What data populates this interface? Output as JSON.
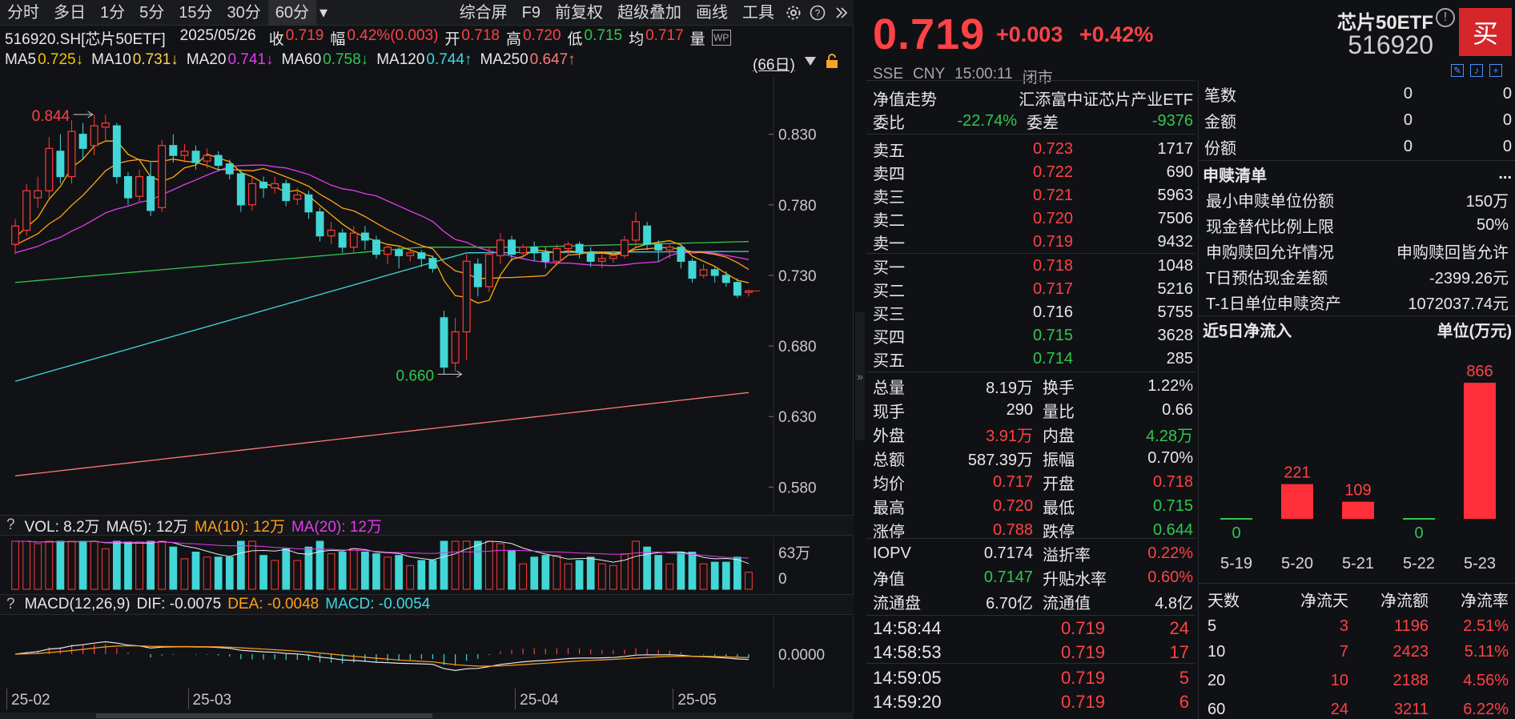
{
  "toolbar": {
    "tabs": [
      "分时",
      "多日",
      "1分",
      "5分",
      "15分",
      "30分",
      "60分"
    ],
    "more": "▾",
    "right": [
      "综合屏",
      "F9",
      "前复权",
      "超级叠加",
      "画线",
      "工具"
    ]
  },
  "info": {
    "code": "516920.SH[芯片50ETF]",
    "date": "2025/05/26",
    "close_label": "收",
    "close": "0.719",
    "amp_label": "幅",
    "amp": "0.42%(0.003)",
    "open_label": "开",
    "open": "0.718",
    "high_label": "高",
    "high": "0.720",
    "low_label": "低",
    "low": "0.715",
    "avg_label": "均",
    "avg": "0.717",
    "vol_label": "量"
  },
  "ma": {
    "ma5_label": "MA5",
    "ma5": "0.725↓",
    "ma10_label": "MA10",
    "ma10": "0.731↓",
    "ma20_label": "MA20",
    "ma20": "0.741↓",
    "ma60_label": "MA60",
    "ma60": "0.758↓",
    "ma120_label": "MA120",
    "ma120": "0.744↑",
    "ma250_label": "MA250",
    "ma250": "0.647↑",
    "period": "(66日)"
  },
  "chart_data": {
    "type": "candlestick",
    "ylim": [
      0.57,
      0.865
    ],
    "yticks": [
      "0.830",
      "0.780",
      "0.730",
      "0.680",
      "0.630",
      "0.580"
    ],
    "high_marker": "0.844",
    "low_marker": "0.660",
    "dates": [
      "25-02",
      "25-03",
      "25-04",
      "25-05"
    ],
    "candles": [
      [
        0.752,
        0.765,
        0.745,
        0.77
      ],
      [
        0.762,
        0.79,
        0.758,
        0.795
      ],
      [
        0.785,
        0.79,
        0.778,
        0.8
      ],
      [
        0.79,
        0.82,
        0.785,
        0.828
      ],
      [
        0.818,
        0.8,
        0.795,
        0.83
      ],
      [
        0.8,
        0.832,
        0.795,
        0.84
      ],
      [
        0.83,
        0.82,
        0.812,
        0.838
      ],
      [
        0.822,
        0.836,
        0.815,
        0.844
      ],
      [
        0.835,
        0.838,
        0.825,
        0.844
      ],
      [
        0.836,
        0.8,
        0.795,
        0.838
      ],
      [
        0.8,
        0.785,
        0.78,
        0.803
      ],
      [
        0.786,
        0.8,
        0.782,
        0.805
      ],
      [
        0.8,
        0.776,
        0.772,
        0.81
      ],
      [
        0.778,
        0.822,
        0.775,
        0.826
      ],
      [
        0.822,
        0.815,
        0.81,
        0.83
      ],
      [
        0.815,
        0.818,
        0.81,
        0.823
      ],
      [
        0.818,
        0.81,
        0.805,
        0.822
      ],
      [
        0.811,
        0.815,
        0.806,
        0.82
      ],
      [
        0.815,
        0.808,
        0.804,
        0.818
      ],
      [
        0.809,
        0.802,
        0.798,
        0.812
      ],
      [
        0.802,
        0.78,
        0.775,
        0.805
      ],
      [
        0.78,
        0.795,
        0.776,
        0.8
      ],
      [
        0.796,
        0.792,
        0.785,
        0.8
      ],
      [
        0.792,
        0.795,
        0.788,
        0.8
      ],
      [
        0.795,
        0.783,
        0.779,
        0.798
      ],
      [
        0.784,
        0.787,
        0.78,
        0.792
      ],
      [
        0.787,
        0.775,
        0.77,
        0.79
      ],
      [
        0.775,
        0.758,
        0.754,
        0.778
      ],
      [
        0.758,
        0.762,
        0.752,
        0.768
      ],
      [
        0.76,
        0.75,
        0.746,
        0.763
      ],
      [
        0.75,
        0.76,
        0.746,
        0.765
      ],
      [
        0.76,
        0.755,
        0.748,
        0.765
      ],
      [
        0.755,
        0.745,
        0.742,
        0.758
      ],
      [
        0.745,
        0.75,
        0.738,
        0.752
      ],
      [
        0.748,
        0.744,
        0.735,
        0.75
      ],
      [
        0.744,
        0.746,
        0.74,
        0.749
      ],
      [
        0.746,
        0.742,
        0.736,
        0.748
      ],
      [
        0.742,
        0.735,
        0.732,
        0.744
      ],
      [
        0.7,
        0.665,
        0.66,
        0.705
      ],
      [
        0.668,
        0.69,
        0.662,
        0.7
      ],
      [
        0.69,
        0.74,
        0.67,
        0.745
      ],
      [
        0.738,
        0.722,
        0.715,
        0.742
      ],
      [
        0.722,
        0.745,
        0.718,
        0.75
      ],
      [
        0.744,
        0.755,
        0.738,
        0.76
      ],
      [
        0.755,
        0.745,
        0.74,
        0.758
      ],
      [
        0.746,
        0.75,
        0.742,
        0.752
      ],
      [
        0.75,
        0.746,
        0.74,
        0.754
      ],
      [
        0.746,
        0.74,
        0.735,
        0.75
      ],
      [
        0.74,
        0.749,
        0.737,
        0.752
      ],
      [
        0.749,
        0.752,
        0.744,
        0.754
      ],
      [
        0.752,
        0.746,
        0.742,
        0.754
      ],
      [
        0.746,
        0.74,
        0.736,
        0.75
      ],
      [
        0.74,
        0.742,
        0.735,
        0.745
      ],
      [
        0.742,
        0.744,
        0.739,
        0.748
      ],
      [
        0.744,
        0.755,
        0.742,
        0.758
      ],
      [
        0.755,
        0.768,
        0.75,
        0.775
      ],
      [
        0.765,
        0.752,
        0.748,
        0.768
      ],
      [
        0.752,
        0.748,
        0.74,
        0.755
      ],
      [
        0.748,
        0.75,
        0.742,
        0.752
      ],
      [
        0.75,
        0.74,
        0.735,
        0.752
      ],
      [
        0.74,
        0.728,
        0.725,
        0.742
      ],
      [
        0.73,
        0.734,
        0.728,
        0.738
      ],
      [
        0.734,
        0.73,
        0.725,
        0.736
      ],
      [
        0.73,
        0.725,
        0.722,
        0.733
      ],
      [
        0.725,
        0.716,
        0.714,
        0.728
      ],
      [
        0.718,
        0.719,
        0.715,
        0.72
      ]
    ],
    "ma_colors": {
      "ma5": "#ffb000",
      "ma10": "#ff9f1c",
      "ma20": "#e23cf0",
      "ma60": "#30c751",
      "ma120": "#3fd8e0",
      "ma250": "#ff7a7a"
    }
  },
  "vol": {
    "q": "?",
    "label": "VOL: 8.2万",
    "ma5": "MA(5): 12万",
    "ma10": "MA(10): 12万",
    "ma20": "MA(20): 12万",
    "axis_top": "63万",
    "axis_bottom": "0"
  },
  "macd": {
    "q": "?",
    "label": "MACD(12,26,9)",
    "dif": "DIF: -0.0075",
    "dea": "DEA: -0.0048",
    "macd": "MACD: -0.0054",
    "axis": "0.0000"
  },
  "quote": {
    "price": "0.719",
    "chg": "+0.003",
    "pct": "+0.42%",
    "exchange": "SSE",
    "currency": "CNY",
    "time": "15:00:11",
    "status": "闭市",
    "name": "芯片50ETF",
    "code": "516920",
    "buy": "买",
    "alert": "!"
  },
  "order": {
    "nav_trend": "净值走势",
    "fund_name": "汇添富中证芯片产业ETF",
    "wb_label": "委比",
    "wb": "-22.74%",
    "wc_label": "委差",
    "wc": "-9376",
    "asks": [
      {
        "label": "卖五",
        "price": "0.723",
        "vol": "1717"
      },
      {
        "label": "卖四",
        "price": "0.722",
        "vol": "690"
      },
      {
        "label": "卖三",
        "price": "0.721",
        "vol": "5963"
      },
      {
        "label": "卖二",
        "price": "0.720",
        "vol": "7506"
      },
      {
        "label": "卖一",
        "price": "0.719",
        "vol": "9432"
      }
    ],
    "bids": [
      {
        "label": "买一",
        "price": "0.718",
        "vol": "1048",
        "color": "red"
      },
      {
        "label": "买二",
        "price": "0.717",
        "vol": "5216",
        "color": "red"
      },
      {
        "label": "买三",
        "price": "0.716",
        "vol": "5755",
        "color": "white"
      },
      {
        "label": "买四",
        "price": "0.715",
        "vol": "3628",
        "color": "green"
      },
      {
        "label": "买五",
        "price": "0.714",
        "vol": "285",
        "color": "green"
      }
    ]
  },
  "stats": [
    {
      "l1": "总量",
      "v1": "8.19万",
      "c1": "white",
      "l2": "换手",
      "v2": "1.22%",
      "c2": "white"
    },
    {
      "l1": "现手",
      "v1": "290",
      "c1": "white",
      "l2": "量比",
      "v2": "0.66",
      "c2": "white"
    },
    {
      "l1": "外盘",
      "v1": "3.91万",
      "c1": "red",
      "l2": "内盘",
      "v2": "4.28万",
      "c2": "green"
    },
    {
      "l1": "总额",
      "v1": "587.39万",
      "c1": "white",
      "l2": "振幅",
      "v2": "0.70%",
      "c2": "white"
    },
    {
      "l1": "均价",
      "v1": "0.717",
      "c1": "red",
      "l2": "开盘",
      "v2": "0.718",
      "c2": "red"
    },
    {
      "l1": "最高",
      "v1": "0.720",
      "c1": "red",
      "l2": "最低",
      "v2": "0.715",
      "c2": "green"
    },
    {
      "l1": "涨停",
      "v1": "0.788",
      "c1": "red",
      "l2": "跌停",
      "v2": "0.644",
      "c2": "green"
    }
  ],
  "stats2": [
    {
      "l1": "IOPV",
      "v1": "0.7174",
      "c1": "white",
      "l2": "溢折率",
      "v2": "0.22%",
      "c2": "red"
    },
    {
      "l1": "净值",
      "v1": "0.7147",
      "c1": "green",
      "l2": "升贴水率",
      "v2": "0.60%",
      "c2": "red"
    },
    {
      "l1": "流通盘",
      "v1": "6.70亿",
      "c1": "white",
      "l2": "流通值",
      "v2": "4.8亿",
      "c2": "white"
    }
  ],
  "ticks": [
    {
      "t": "14:58:44",
      "p": "0.719",
      "v": "24"
    },
    {
      "t": "14:58:53",
      "p": "0.719",
      "v": "17"
    },
    {
      "t": "14:59:05",
      "p": "0.719",
      "v": "5"
    },
    {
      "t": "14:59:20",
      "p": "0.719",
      "v": "6"
    }
  ],
  "side": {
    "top_rows": [
      {
        "a": "笔数",
        "b": "0",
        "c": "0"
      },
      {
        "a": "金额",
        "b": "0",
        "c": "0"
      },
      {
        "a": "份额",
        "b": "0",
        "c": "0"
      }
    ],
    "redeem_title": "申赎清单",
    "redeem_more": "...",
    "redeem": [
      {
        "k": "最小申赎单位份额",
        "v": "150万"
      },
      {
        "k": "现金替代比例上限",
        "v": "50%"
      },
      {
        "k": "申购赎回允许情况",
        "v": "申购赎回皆允许"
      },
      {
        "k": "T日预估现金差额",
        "v": "-2399.26元"
      },
      {
        "k": "T-1日单位申赎资产",
        "v": "1072037.74元"
      }
    ],
    "flow_title": "近5日净流入",
    "flow_unit": "单位(万元)",
    "flow_chart": {
      "type": "bar",
      "categories": [
        "5-19",
        "5-20",
        "5-21",
        "5-22",
        "5-23"
      ],
      "values": [
        0,
        221,
        109,
        0,
        866
      ],
      "labels": [
        "0",
        "221",
        "109",
        "0",
        "866"
      ]
    },
    "flow_headers": [
      "天数",
      "净流天",
      "净流额",
      "净流率"
    ],
    "flow_rows": [
      {
        "d": "5",
        "e": "3",
        "f": "1196",
        "g": "2.51%"
      },
      {
        "d": "10",
        "e": "7",
        "f": "2423",
        "g": "5.11%"
      },
      {
        "d": "20",
        "e": "10",
        "f": "2188",
        "g": "4.56%"
      },
      {
        "d": "60",
        "e": "24",
        "f": "3211",
        "g": "6.22%"
      }
    ]
  }
}
